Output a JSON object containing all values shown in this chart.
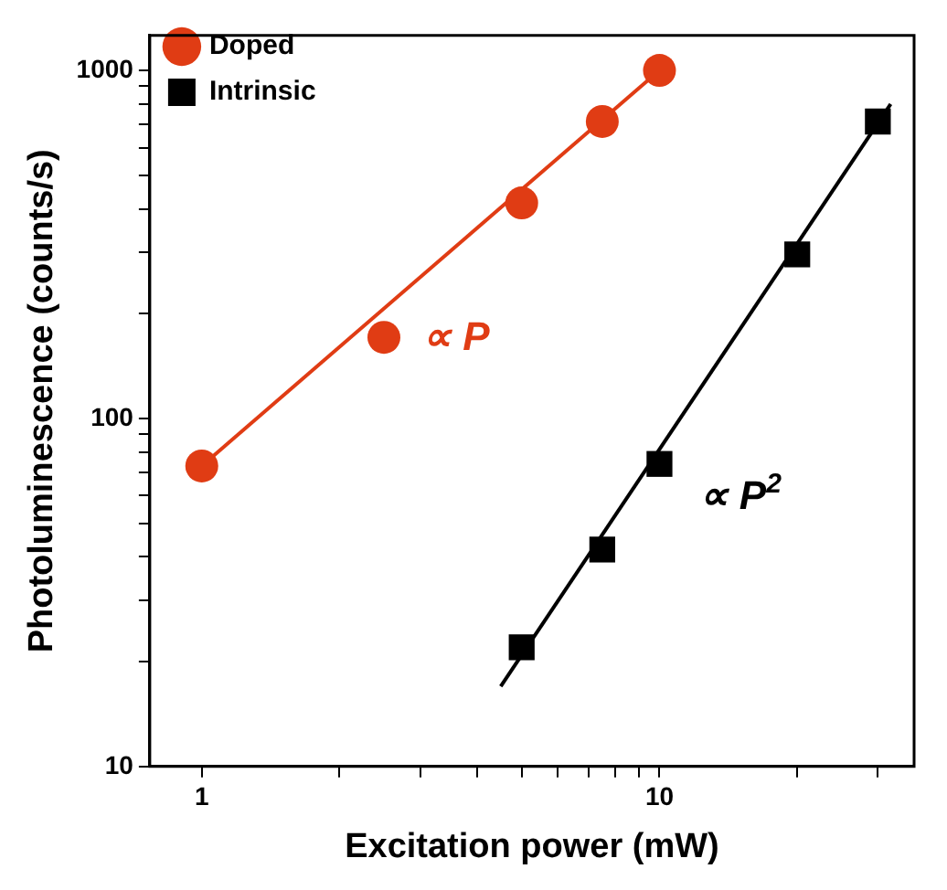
{
  "chart_data": {
    "type": "scatter",
    "xlabel": "Excitation power (mW)",
    "ylabel": "Photoluminescence (counts/s)",
    "log": "xy",
    "grid": false,
    "legend": "top left",
    "xlim": [
      0.77,
      36
    ],
    "ylim": [
      10,
      1260
    ],
    "xticks": [
      1,
      {
        "value": 2,
        "label": null
      },
      {
        "value": 3,
        "label": null
      },
      {
        "value": 4,
        "label": null
      },
      {
        "value": 5,
        "label": null
      },
      {
        "value": 6,
        "label": null
      },
      {
        "value": 7,
        "label": null
      },
      {
        "value": 8,
        "label": null
      },
      {
        "value": 9,
        "label": null
      },
      10,
      {
        "value": 20,
        "label": null
      },
      {
        "value": 30,
        "label": null
      }
    ],
    "yticks": [
      10,
      {
        "value": 20,
        "label": null
      },
      {
        "value": 30,
        "label": null
      },
      {
        "value": 40,
        "label": null
      },
      {
        "value": 50,
        "label": null
      },
      {
        "value": 60,
        "label": null
      },
      {
        "value": 70,
        "label": null
      },
      {
        "value": 80,
        "label": null
      },
      {
        "value": 90,
        "label": null
      },
      100,
      {
        "value": 200,
        "label": null
      },
      {
        "value": 300,
        "label": null
      },
      {
        "value": 400,
        "label": null
      },
      {
        "value": 500,
        "label": null
      },
      {
        "value": 600,
        "label": null
      },
      {
        "value": 700,
        "label": null
      },
      {
        "value": 800,
        "label": null
      },
      {
        "value": 900,
        "label": null
      },
      1000
    ],
    "series": [
      {
        "name": "Doped",
        "type": "scatter",
        "marker": "circle",
        "color": "#e03c14",
        "x": [
          1,
          2.5,
          5,
          7.5,
          10
        ],
        "values": [
          73,
          171,
          416,
          713,
          1000
        ]
      },
      {
        "name": "Intrinsic",
        "type": "scatter",
        "marker": "square",
        "color": "#000000",
        "x": [
          5,
          7.5,
          10,
          20,
          30
        ],
        "values": [
          22,
          42,
          74,
          296,
          713
        ]
      },
      {
        "type": "line",
        "marker": "none",
        "color": "#e03c14",
        "x": [
          1,
          10
        ],
        "values": [
          73,
          1000
        ]
      },
      {
        "type": "line",
        "marker": "none",
        "color": "#000000",
        "x": [
          4.5,
          32
        ],
        "values": [
          17,
          800
        ]
      }
    ],
    "annotations": [
      "∝ P",
      "∝ P$^{2}$"
    ]
  }
}
